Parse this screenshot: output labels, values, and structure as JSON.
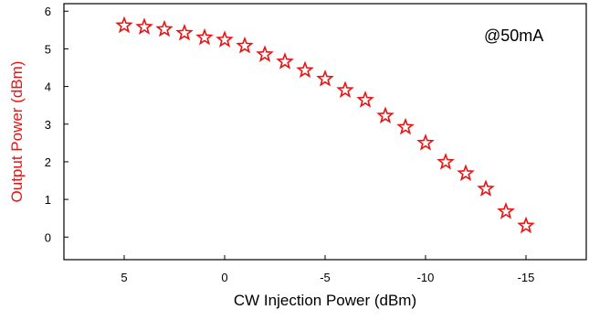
{
  "chart_data": {
    "type": "scatter",
    "xlabel": "CW Injection Power (dBm)",
    "ylabel": "Output Power (dBm)",
    "annotation": "@50mA",
    "xlim": [
      8,
      -18
    ],
    "ylim": [
      -0.6,
      6.2
    ],
    "x_reversed": true,
    "xticks": [
      5,
      0,
      -5,
      -10,
      -15
    ],
    "xtick_labels": [
      "5",
      "0",
      "-5",
      "-10",
      "-15"
    ],
    "yticks": [
      0,
      1,
      2,
      3,
      4,
      5,
      6
    ],
    "ytick_labels": [
      "0",
      "1",
      "2",
      "3",
      "4",
      "5",
      "6"
    ],
    "grid": false,
    "series": [
      {
        "marker": "star-open",
        "color": "#ee1111",
        "x": [
          5,
          4,
          3,
          2,
          1,
          0,
          -1,
          -2,
          -3,
          -4,
          -5,
          -6,
          -7,
          -8,
          -9,
          -10,
          -11,
          -12,
          -13,
          -14,
          -15
        ],
        "y": [
          5.62,
          5.58,
          5.52,
          5.42,
          5.3,
          5.24,
          5.08,
          4.85,
          4.66,
          4.43,
          4.2,
          3.9,
          3.64,
          3.22,
          2.92,
          2.5,
          1.99,
          1.69,
          1.28,
          0.68,
          0.3
        ]
      }
    ]
  },
  "colors": {
    "marker": "#ee1111",
    "ylabel": "#ee1111",
    "axis": "#000000"
  }
}
